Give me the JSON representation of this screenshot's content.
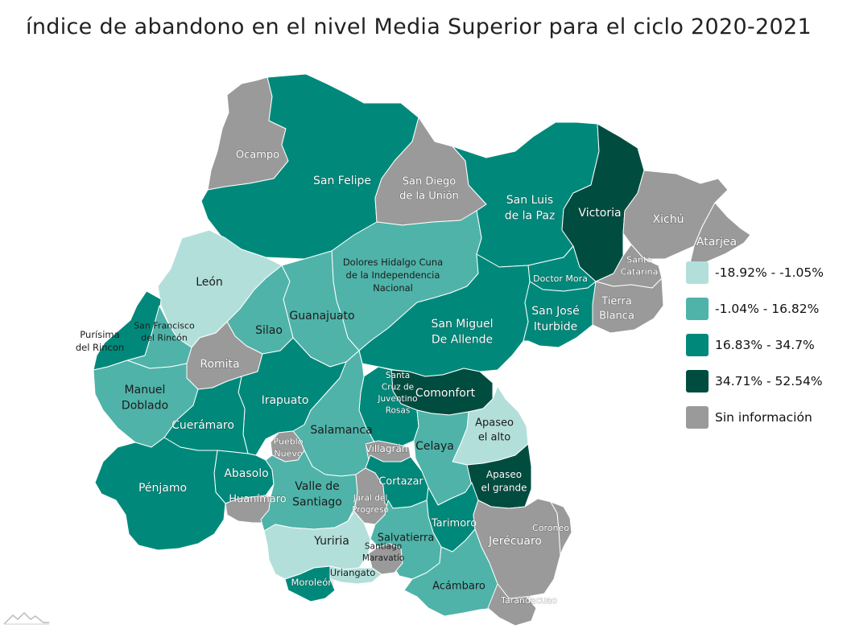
{
  "title": "índice de abandono en el nivel Media Superior para el ciclo 2020-2021",
  "map_colors": {
    "cat_1": "#b3dfdb",
    "cat_2": "#4fb3a9",
    "cat_3": "#00897b",
    "cat_4": "#004d40",
    "cat_na": "#9a9a9a"
  },
  "legend": [
    {
      "label": "-18.92% - -1.05%",
      "category": "cat_1"
    },
    {
      "label": "-1.04% - 16.82%",
      "category": "cat_2"
    },
    {
      "label": "16.83% - 34.7%",
      "category": "cat_3"
    },
    {
      "label": "34.71% - 52.54%",
      "category": "cat_4"
    },
    {
      "label": "Sin información",
      "category": "cat_na"
    }
  ],
  "municipalities": [
    {
      "id": "ocampo",
      "lines": [
        "Ocampo"
      ],
      "category": "cat_na"
    },
    {
      "id": "san-felipe",
      "lines": [
        "San Felipe"
      ],
      "category": "cat_3"
    },
    {
      "id": "san-diego",
      "lines": [
        "San Diego",
        "de la Unión"
      ],
      "category": "cat_na"
    },
    {
      "id": "san-luis",
      "lines": [
        "San Luis",
        "de la Paz"
      ],
      "category": "cat_3"
    },
    {
      "id": "victoria",
      "lines": [
        "Victoria"
      ],
      "category": "cat_4"
    },
    {
      "id": "xichu",
      "lines": [
        "Xichú"
      ],
      "category": "cat_na"
    },
    {
      "id": "atarjea",
      "lines": [
        "Atarjea"
      ],
      "category": "cat_na"
    },
    {
      "id": "leon",
      "lines": [
        "León"
      ],
      "category": "cat_1"
    },
    {
      "id": "dolores",
      "lines": [
        "Dolores Hidalgo Cuna",
        "de la Independencia",
        "Nacional"
      ],
      "category": "cat_2"
    },
    {
      "id": "doctor-mora",
      "lines": [
        "Doctor Mora"
      ],
      "category": "cat_3"
    },
    {
      "id": "santa-catarina",
      "lines": [
        "Santa",
        "Catarina"
      ],
      "category": "cat_na"
    },
    {
      "id": "tierra-blanca",
      "lines": [
        "Tierra",
        "Blanca"
      ],
      "category": "cat_na"
    },
    {
      "id": "purisima",
      "lines": [
        "Purísima",
        "del Rincon"
      ],
      "category": "cat_3"
    },
    {
      "id": "sfrancisco",
      "lines": [
        "San Francisco",
        "del Rincón"
      ],
      "category": "cat_2"
    },
    {
      "id": "silao",
      "lines": [
        "Silao"
      ],
      "category": "cat_2"
    },
    {
      "id": "guanajuato",
      "lines": [
        "Guanajuato"
      ],
      "category": "cat_2"
    },
    {
      "id": "san-miguel",
      "lines": [
        "San Miguel",
        "De Allende"
      ],
      "category": "cat_3"
    },
    {
      "id": "san-jose",
      "lines": [
        "San José",
        "Iturbide"
      ],
      "category": "cat_3"
    },
    {
      "id": "romita",
      "lines": [
        "Romita"
      ],
      "category": "cat_na"
    },
    {
      "id": "manuel-doblado",
      "lines": [
        "Manuel",
        "Doblado"
      ],
      "category": "cat_2"
    },
    {
      "id": "irapuato",
      "lines": [
        "Irapuato"
      ],
      "category": "cat_3"
    },
    {
      "id": "comonfort",
      "lines": [
        "Comonfort"
      ],
      "category": "cat_4"
    },
    {
      "id": "santa-cruz",
      "lines": [
        "Santa",
        "Cruz de",
        "Juventino",
        "Rosas"
      ],
      "category": "cat_3"
    },
    {
      "id": "apaseo-alto",
      "lines": [
        "Apaseo",
        "el alto"
      ],
      "category": "cat_1"
    },
    {
      "id": "cueramaro",
      "lines": [
        "Cuerámaro"
      ],
      "category": "cat_3"
    },
    {
      "id": "salamanca",
      "lines": [
        "Salamanca"
      ],
      "category": "cat_2"
    },
    {
      "id": "pueblo-nuevo",
      "lines": [
        "Pueblo",
        "Nuevo"
      ],
      "category": "cat_na"
    },
    {
      "id": "villagran",
      "lines": [
        "Villagrán"
      ],
      "category": "cat_na"
    },
    {
      "id": "celaya",
      "lines": [
        "Celaya"
      ],
      "category": "cat_2"
    },
    {
      "id": "apaseo-grande",
      "lines": [
        "Apaseo",
        "el grande"
      ],
      "category": "cat_4"
    },
    {
      "id": "abasolo",
      "lines": [
        "Abasolo"
      ],
      "category": "cat_3"
    },
    {
      "id": "penjamo",
      "lines": [
        "Pénjamo"
      ],
      "category": "cat_3"
    },
    {
      "id": "huanimaro",
      "lines": [
        "Huanímaro"
      ],
      "category": "cat_na"
    },
    {
      "id": "valle",
      "lines": [
        "Valle de",
        "Santiago"
      ],
      "category": "cat_2"
    },
    {
      "id": "jaral",
      "lines": [
        "Jaral del",
        "Progreso"
      ],
      "category": "cat_na"
    },
    {
      "id": "cortazar",
      "lines": [
        "Cortazar"
      ],
      "category": "cat_3"
    },
    {
      "id": "tarimoro",
      "lines": [
        "Tarimoro"
      ],
      "category": "cat_3"
    },
    {
      "id": "jerecuaro",
      "lines": [
        "Jerécuaro"
      ],
      "category": "cat_na"
    },
    {
      "id": "coroneo",
      "lines": [
        "Coroneo"
      ],
      "category": "cat_na"
    },
    {
      "id": "yuriria",
      "lines": [
        "Yuriria"
      ],
      "category": "cat_1"
    },
    {
      "id": "salvatierra",
      "lines": [
        "Salvatierra"
      ],
      "category": "cat_2"
    },
    {
      "id": "santiago-maravatio",
      "lines": [
        "Santiago",
        "Maravatío"
      ],
      "category": "cat_na"
    },
    {
      "id": "uriangato",
      "lines": [
        "Uriangato"
      ],
      "category": "cat_1"
    },
    {
      "id": "moroleon",
      "lines": [
        "Moroleón"
      ],
      "category": "cat_3"
    },
    {
      "id": "acambaro",
      "lines": [
        "Acámbaro"
      ],
      "category": "cat_2"
    },
    {
      "id": "tarandacuao",
      "lines": [
        "Tarandacuao"
      ],
      "category": "cat_na"
    }
  ]
}
